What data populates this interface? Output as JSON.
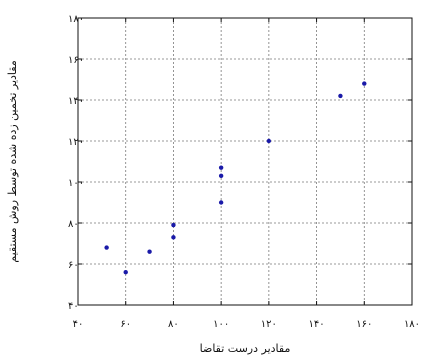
{
  "chart_data": {
    "type": "scatter",
    "title": "",
    "xlabel": "مقادیر درست تقاضا",
    "ylabel": "مقادیر تخمین زده شده توسط روش مستقیم",
    "xlim": [
      40,
      180
    ],
    "ylim": [
      40,
      180
    ],
    "x_ticks": [
      40,
      60,
      80,
      100,
      120,
      140,
      160,
      180
    ],
    "y_ticks": [
      40,
      60,
      80,
      100,
      120,
      140,
      160,
      180
    ],
    "x_tick_labels": [
      "۴۰",
      "۶۰",
      "۸۰",
      "۱۰۰",
      "۱۲۰",
      "۱۴۰",
      "۱۶۰",
      "۱۸۰"
    ],
    "y_tick_labels": [
      "۴۰",
      "۶۰",
      "۸۰",
      "۱۰۰",
      "۱۲۰",
      "۱۴۰",
      "۱۶۰",
      "۱۸۰"
    ],
    "grid": true,
    "marker_color": "#1a1aa8",
    "points": [
      {
        "x": 52,
        "y": 68
      },
      {
        "x": 60,
        "y": 56
      },
      {
        "x": 70,
        "y": 66
      },
      {
        "x": 80,
        "y": 73
      },
      {
        "x": 80,
        "y": 79
      },
      {
        "x": 100,
        "y": 90
      },
      {
        "x": 100,
        "y": 103
      },
      {
        "x": 100,
        "y": 107
      },
      {
        "x": 120,
        "y": 120
      },
      {
        "x": 150,
        "y": 142
      },
      {
        "x": 160,
        "y": 148
      }
    ]
  }
}
